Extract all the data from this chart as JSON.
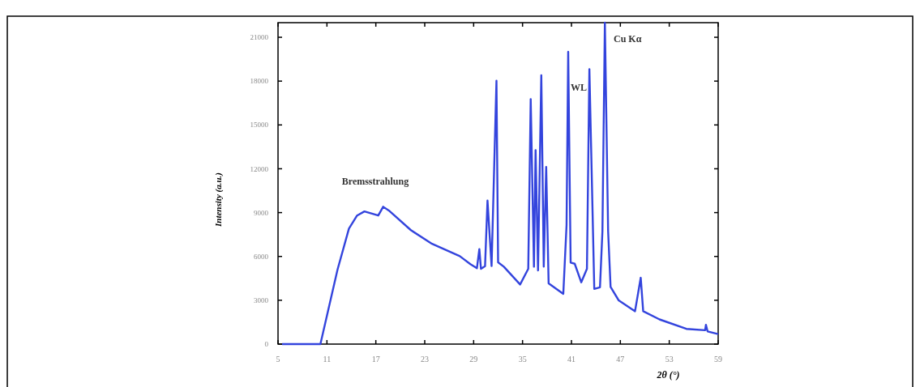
{
  "chart_data": {
    "type": "line",
    "xlabel": "2θ (°)",
    "ylabel": "Intensity (a.u.)",
    "xlim": [
      5,
      59
    ],
    "xticks": [
      5,
      11,
      17,
      23,
      29,
      35,
      41,
      47,
      53,
      59
    ],
    "ylim": [
      0,
      22000
    ],
    "yticks": [
      0,
      3000,
      6000,
      9000,
      12000,
      15000,
      18000,
      21000
    ],
    "grid": false,
    "line_style": "solid",
    "annotations": [
      "Bremsstrahlung",
      {
        "text": "WL",
        "x": 43.2,
        "y": 18820
      },
      {
        "text": "Cu Kα",
        "x": 45.1,
        "y": 22000
      }
    ],
    "series": [
      {
        "color": "#3344dd",
        "x": [
          5.5,
          10.2,
          12.3,
          13.7,
          14.7,
          15.6,
          17.3,
          17.9,
          18.7,
          21.3,
          23.9,
          27.3,
          28.6,
          29.4,
          29.7,
          29.9,
          30.4,
          30.7,
          31.2,
          31.8,
          32.0,
          32.7,
          34.7,
          35.7,
          36.0,
          36.4,
          36.6,
          36.9,
          37.3,
          37.6,
          37.9,
          38.2,
          40.0,
          40.4,
          40.6,
          40.9,
          41.4,
          42.2,
          42.9,
          43.2,
          43.4,
          43.8,
          44.5,
          44.8,
          45.1,
          45.5,
          45.8,
          46.8,
          48.8,
          49.5,
          49.8,
          51.8,
          55.1,
          57.4,
          57.5,
          57.7,
          59
        ],
        "values": [
          0,
          0,
          5100,
          7900,
          8800,
          9080,
          8800,
          9400,
          9100,
          7800,
          6860,
          6020,
          5470,
          5190,
          6500,
          5150,
          5340,
          9820,
          5340,
          18020,
          5600,
          5300,
          4080,
          5150,
          16770,
          5300,
          13280,
          5040,
          18400,
          5300,
          12130,
          4160,
          3440,
          8150,
          20010,
          5580,
          5500,
          4230,
          5150,
          18820,
          13810,
          3780,
          3890,
          7720,
          22000,
          7720,
          3920,
          2990,
          2250,
          4540,
          2250,
          1690,
          1040,
          950,
          1320,
          870,
          690
        ]
      }
    ]
  }
}
